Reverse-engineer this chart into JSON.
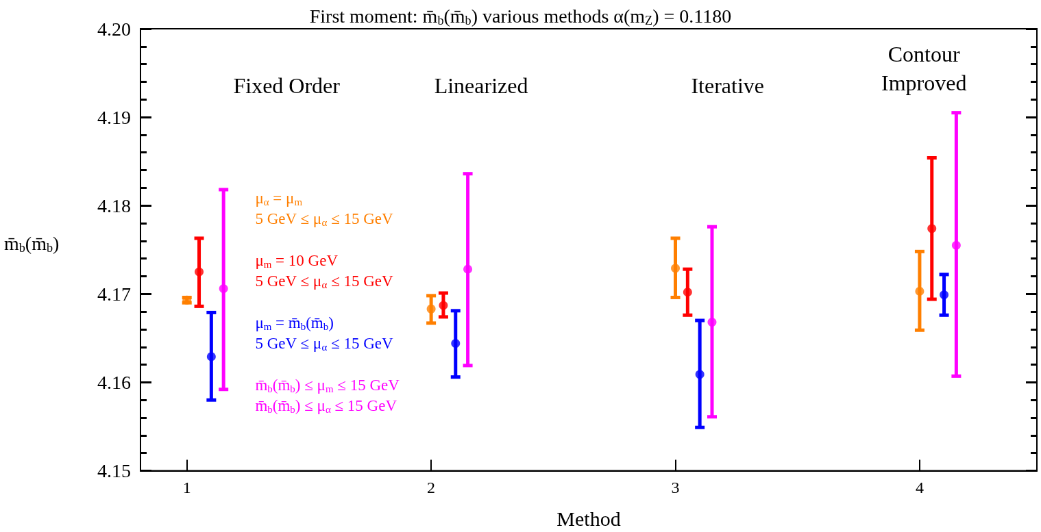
{
  "chart_data": {
    "type": "scatter",
    "title": "First moment: m̄$_{b}$(m̄$_{b}$) various methods α(m$_{Z}$) = 0.1180",
    "xlabel": "Method",
    "ylabel": "m̄$_{b}$(m̄$_{b}$)",
    "xlim": [
      0.81,
      4.48
    ],
    "xticks": [
      1,
      2,
      3,
      4
    ],
    "ylim": [
      4.15,
      4.2
    ],
    "yticks": [
      {
        "value": 4.15,
        "label": "4.15"
      },
      {
        "value": 4.16,
        "label": "4.16"
      },
      {
        "value": 4.17,
        "label": "4.17"
      },
      {
        "value": 4.18,
        "label": "4.18"
      },
      {
        "value": 4.19,
        "label": "4.19"
      },
      {
        "value": 4.2,
        "label": "4.20"
      }
    ],
    "marker": "circle",
    "legend": "left",
    "series": [
      {
        "name": "μ$_{α}$ = μ$_{m}$\n5 GeV ≤ μ$_{α}$ ≤ 15 GeV",
        "color": "#ff7f00",
        "x": [
          1,
          2,
          3,
          4
        ],
        "values": [
          4.1693,
          4.1683,
          4.1729,
          4.1703
        ],
        "errors": [
          [
            4.169,
            4.1696
          ],
          [
            4.1667,
            4.1698
          ],
          [
            4.1696,
            4.1763
          ],
          [
            4.1659,
            4.1748
          ]
        ]
      },
      {
        "name": "μ$_{m}$ = 10 GeV\n5 GeV ≤ μ$_{α}$ ≤ 15 GeV",
        "color": "#ff0000",
        "x": [
          1.05,
          2.05,
          3.05,
          4.05
        ],
        "values": [
          4.1725,
          4.1687,
          4.1702,
          4.1774
        ],
        "errors": [
          [
            4.1686,
            4.1763
          ],
          [
            4.1674,
            4.1701
          ],
          [
            4.1676,
            4.1728
          ],
          [
            4.1694,
            4.1854
          ]
        ]
      },
      {
        "name": "μ$_{m}$ = m̄$_{b}$(m̄$_{b}$)\n5 GeV ≤ μ$_{α}$ ≤ 15 GeV",
        "color": "#0000ff",
        "x": [
          1.1,
          2.1,
          3.1,
          4.1
        ],
        "values": [
          4.1629,
          4.1644,
          4.1609,
          4.1699
        ],
        "errors": [
          [
            4.158,
            4.1679
          ],
          [
            4.1606,
            4.1681
          ],
          [
            4.1549,
            4.167
          ],
          [
            4.1676,
            4.1722
          ]
        ]
      },
      {
        "name": "m̄$_{b}$(m̄$_{b}$) ≤ μ$_{m}$ ≤ 15 GeV\nm̄$_{b}$(m̄$_{b}$) ≤ μ$_{α}$ ≤ 15 GeV",
        "color": "#ff00ff",
        "x": [
          1.15,
          2.15,
          3.15,
          4.15
        ],
        "values": [
          4.1706,
          4.1728,
          4.1668,
          4.1755
        ],
        "errors": [
          [
            4.1592,
            4.1818
          ],
          [
            4.1619,
            4.1836
          ],
          [
            4.1561,
            4.1776
          ],
          [
            4.1607,
            4.1905
          ]
        ]
      }
    ],
    "annotations": [
      "Fixed Order",
      "Linearized",
      "Iterative",
      "Contour\nImproved"
    ]
  }
}
